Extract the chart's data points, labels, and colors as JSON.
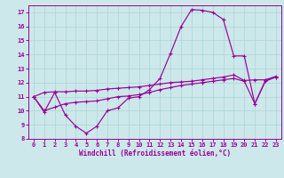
{
  "xlabel": "Windchill (Refroidissement éolien,°C)",
  "xlim": [
    -0.5,
    23.5
  ],
  "ylim": [
    8,
    17.5
  ],
  "xticks": [
    0,
    1,
    2,
    3,
    4,
    5,
    6,
    7,
    8,
    9,
    10,
    11,
    12,
    13,
    14,
    15,
    16,
    17,
    18,
    19,
    20,
    21,
    22,
    23
  ],
  "yticks": [
    8,
    9,
    10,
    11,
    12,
    13,
    14,
    15,
    16,
    17
  ],
  "bg_color": "#cce8ea",
  "line_color": "#990099",
  "grid_color": "#aadddd",
  "line1_x": [
    0,
    1,
    2,
    3,
    4,
    5,
    6,
    7,
    8,
    9,
    10,
    11,
    12,
    13,
    14,
    15,
    16,
    17,
    18,
    19,
    20,
    21,
    22,
    23
  ],
  "line1_y": [
    11.0,
    9.9,
    11.3,
    9.7,
    8.9,
    8.4,
    8.9,
    10.0,
    10.2,
    10.9,
    11.0,
    11.5,
    12.3,
    14.1,
    16.0,
    17.2,
    17.15,
    17.0,
    16.5,
    13.9,
    13.9,
    10.5,
    12.1,
    12.4
  ],
  "line2_x": [
    0,
    1,
    2,
    3,
    4,
    5,
    6,
    7,
    8,
    9,
    10,
    11,
    12,
    13,
    14,
    15,
    16,
    17,
    18,
    19,
    20,
    21,
    22,
    23
  ],
  "line2_y": [
    11.0,
    10.0,
    10.25,
    10.5,
    10.6,
    10.65,
    10.7,
    10.85,
    11.0,
    11.05,
    11.15,
    11.3,
    11.5,
    11.65,
    11.8,
    11.9,
    12.0,
    12.1,
    12.2,
    12.3,
    12.1,
    10.5,
    12.15,
    12.4
  ],
  "line3_x": [
    0,
    1,
    2,
    3,
    4,
    5,
    6,
    7,
    8,
    9,
    10,
    11,
    12,
    13,
    14,
    15,
    16,
    17,
    18,
    19,
    20,
    21,
    22,
    23
  ],
  "line3_y": [
    11.0,
    11.3,
    11.35,
    11.35,
    11.4,
    11.4,
    11.45,
    11.55,
    11.6,
    11.65,
    11.7,
    11.8,
    11.9,
    12.0,
    12.05,
    12.1,
    12.2,
    12.3,
    12.4,
    12.55,
    12.15,
    12.2,
    12.2,
    12.45
  ]
}
